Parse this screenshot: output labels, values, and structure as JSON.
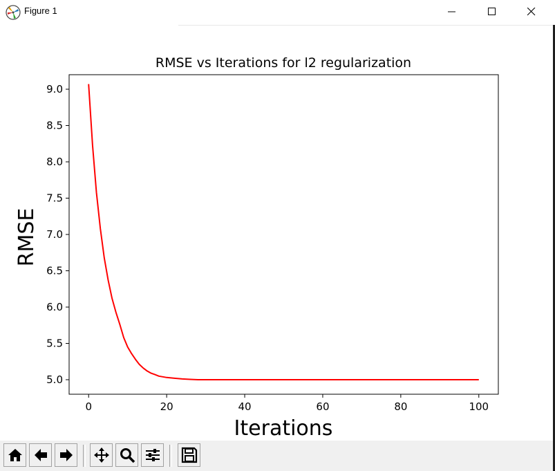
{
  "window": {
    "title": "Figure 1",
    "controls": [
      "minimize-icon",
      "maximize-icon",
      "close-icon"
    ]
  },
  "toolbar": {
    "buttons": [
      {
        "name": "home-button",
        "icon": "home-icon"
      },
      {
        "name": "back-button",
        "icon": "arrow-left-icon"
      },
      {
        "name": "forward-button",
        "icon": "arrow-right-icon"
      },
      {
        "name": "pan-button",
        "icon": "move-icon"
      },
      {
        "name": "zoom-button",
        "icon": "magnifier-icon"
      },
      {
        "name": "configure-subplots-button",
        "icon": "sliders-icon"
      },
      {
        "name": "save-button",
        "icon": "floppy-disk-icon"
      }
    ]
  },
  "chart_data": {
    "type": "line",
    "title": "RMSE vs Iterations for l2 regularization",
    "xlabel": "Iterations",
    "ylabel": "RMSE",
    "xlim": [
      -5,
      105
    ],
    "ylim": [
      4.8,
      9.2
    ],
    "xticks": [
      0,
      20,
      40,
      60,
      80,
      100
    ],
    "xtick_labels": [
      "0",
      "20",
      "40",
      "60",
      "80",
      "100"
    ],
    "yticks": [
      5.0,
      5.5,
      6.0,
      6.5,
      7.0,
      7.5,
      8.0,
      8.5,
      9.0
    ],
    "ytick_labels": [
      "5.0",
      "5.5",
      "6.0",
      "6.5",
      "7.0",
      "7.5",
      "8.0",
      "8.5",
      "9.0"
    ],
    "grid": false,
    "series": [
      {
        "color": "#ff0000",
        "x": [
          0,
          1,
          2,
          3,
          4,
          5,
          6,
          7,
          8,
          9,
          10,
          11,
          12,
          13,
          14,
          15,
          16,
          17,
          18,
          19,
          20,
          22,
          24,
          26,
          28,
          30,
          35,
          40,
          50,
          60,
          70,
          80,
          90,
          100
        ],
        "y": [
          9.07,
          8.23,
          7.58,
          7.08,
          6.68,
          6.37,
          6.12,
          5.93,
          5.76,
          5.58,
          5.45,
          5.36,
          5.28,
          5.21,
          5.16,
          5.12,
          5.09,
          5.07,
          5.05,
          5.04,
          5.03,
          5.02,
          5.01,
          5.005,
          5.0,
          5.0,
          5.0,
          5.0,
          5.0,
          5.0,
          5.0,
          5.0,
          5.0,
          5.0
        ]
      }
    ]
  }
}
